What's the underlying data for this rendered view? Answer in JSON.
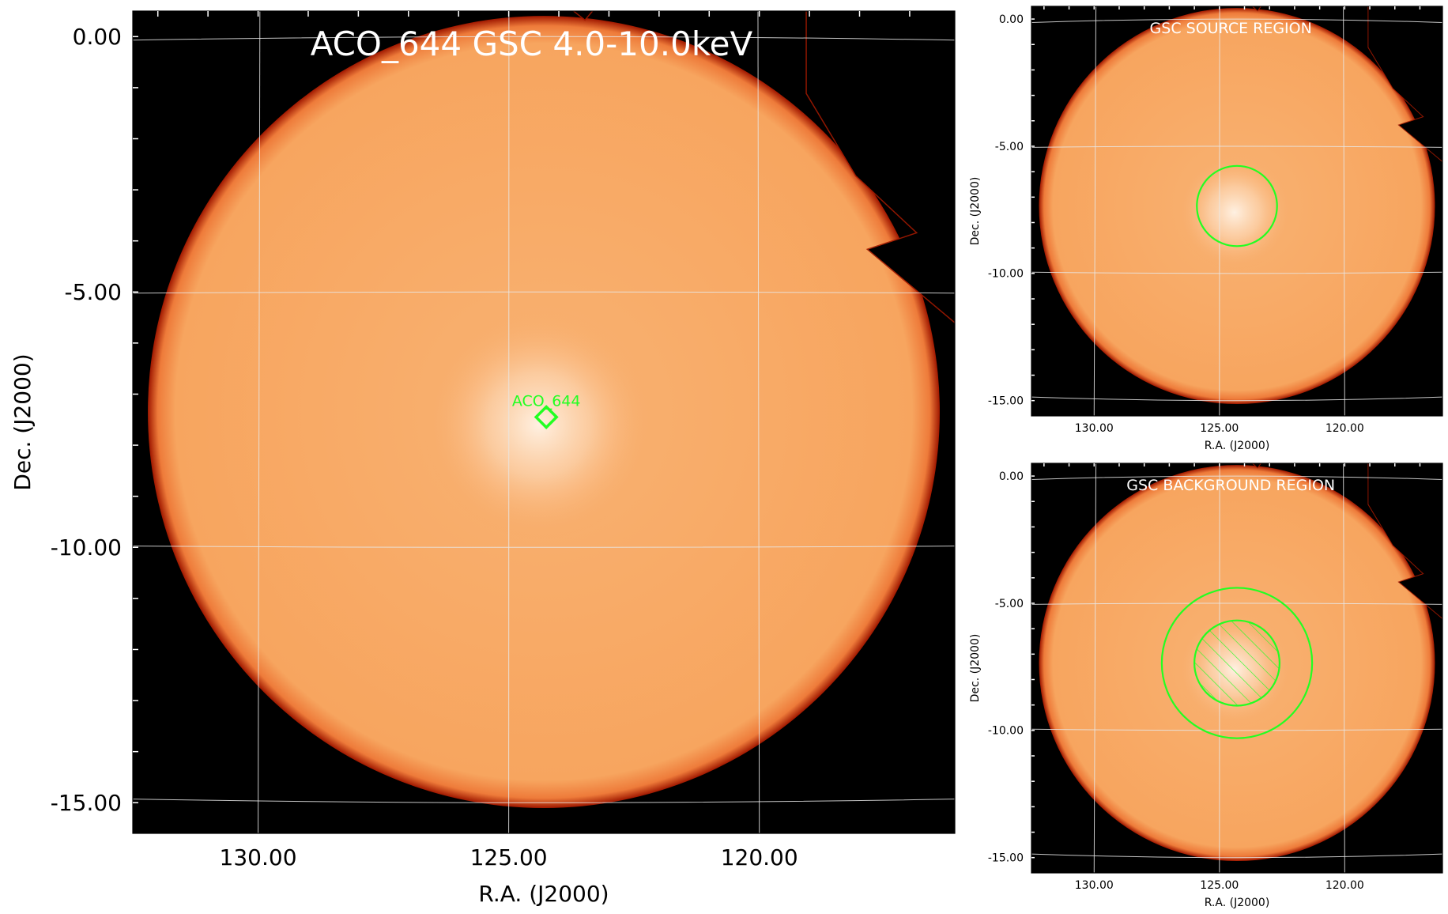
{
  "colors": {
    "background": "#000000",
    "disk": "#f7a55f",
    "disk_edge": "#a01800",
    "source_glow": "#fff4e8",
    "grid": "#e8e8e8",
    "region": "#22ff22",
    "title_text": "#ffffff",
    "axis_text": "#000000"
  },
  "chart_data": [
    {
      "type": "heatmap",
      "panel": "main",
      "title": "ACO_644 GSC 4.0-10.0keV",
      "xlabel": "R.A. (J2000)",
      "ylabel": "Dec. (J2000)",
      "xlim": [
        132.5,
        116.1
      ],
      "ylim": [
        -15.6,
        0.5
      ],
      "xticks": [
        130.0,
        125.0,
        120.0
      ],
      "xtick_labels": [
        "130.00",
        "125.00",
        "120.00"
      ],
      "yticks": [
        0.0,
        -5.0,
        -10.0,
        -15.0
      ],
      "ytick_labels": [
        "0.00",
        "-5.00",
        "-10.00",
        "-15.00"
      ],
      "grid": true,
      "disk": {
        "center_ra": 124.3,
        "center_dec": -7.35,
        "radius_deg": 7.9
      },
      "source_marker": {
        "label": "ACO_644",
        "ra": 124.25,
        "dec": -7.45,
        "shape": "diamond"
      }
    },
    {
      "type": "heatmap",
      "panel": "source-region",
      "title": "GSC SOURCE REGION",
      "xlabel": "R.A. (J2000)",
      "ylabel": "Dec. (J2000)",
      "xlim": [
        132.5,
        116.1
      ],
      "ylim": [
        -15.6,
        0.5
      ],
      "xticks": [
        130.0,
        125.0,
        120.0
      ],
      "xtick_labels": [
        "130.00",
        "125.00",
        "120.00"
      ],
      "yticks": [
        0.0,
        -5.0,
        -10.0,
        -15.0
      ],
      "ytick_labels": [
        "0.00",
        "-5.00",
        "-10.00",
        "-15.00"
      ],
      "grid": true,
      "regions": [
        {
          "kind": "circle",
          "ra": 124.3,
          "dec": -7.35,
          "radius_deg": 1.6,
          "hatched": false
        }
      ]
    },
    {
      "type": "heatmap",
      "panel": "background-region",
      "title": "GSC BACKGROUND REGION",
      "xlabel": "R.A. (J2000)",
      "ylabel": "Dec. (J2000)",
      "xlim": [
        132.5,
        116.1
      ],
      "ylim": [
        -15.6,
        0.5
      ],
      "xticks": [
        130.0,
        125.0,
        120.0
      ],
      "xtick_labels": [
        "130.00",
        "125.00",
        "120.00"
      ],
      "yticks": [
        0.0,
        -5.0,
        -10.0,
        -15.0
      ],
      "ytick_labels": [
        "0.00",
        "-5.00",
        "-10.00",
        "-15.00"
      ],
      "grid": true,
      "regions": [
        {
          "kind": "circle",
          "ra": 124.3,
          "dec": -7.35,
          "radius_deg": 3.0,
          "hatched": false
        },
        {
          "kind": "circle",
          "ra": 124.3,
          "dec": -7.35,
          "radius_deg": 1.7,
          "hatched": true
        }
      ]
    }
  ]
}
